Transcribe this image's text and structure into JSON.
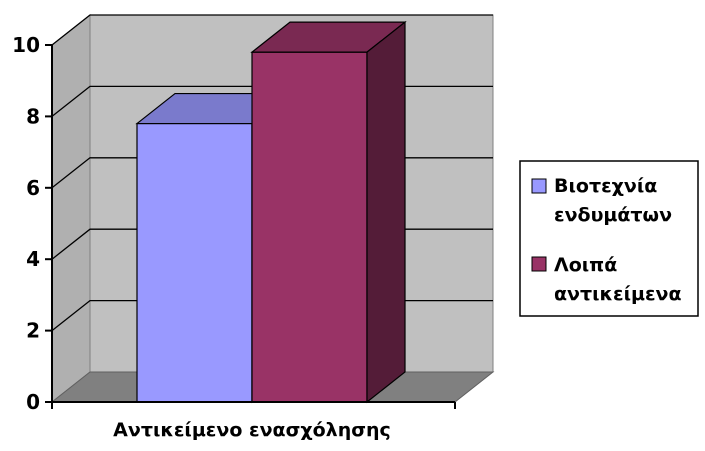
{
  "chart_data": {
    "type": "bar",
    "categories": [
      "Αντικείμενο ενασχόλησης"
    ],
    "series": [
      {
        "name": "Βιοτεχνία ενδυμάτων",
        "legend_lines": [
          "Βιοτεχνία",
          "ενδυμάτων"
        ],
        "values": [
          7.8
        ],
        "color": "#9999ff"
      },
      {
        "name": "Λοιπά αντικείμενα",
        "legend_lines": [
          "Λοιπά",
          "αντικείμενα"
        ],
        "values": [
          9.8
        ],
        "color": "#993366"
      }
    ],
    "title": "",
    "xlabel": "",
    "ylabel": "",
    "ylim": [
      0,
      10
    ],
    "yticks": [
      0,
      2,
      4,
      6,
      8,
      10
    ],
    "grid": true,
    "legend_position": "right",
    "style": "3d-clustered-column",
    "wall_color": "#c0c0c0",
    "floor_color": "#808080"
  }
}
